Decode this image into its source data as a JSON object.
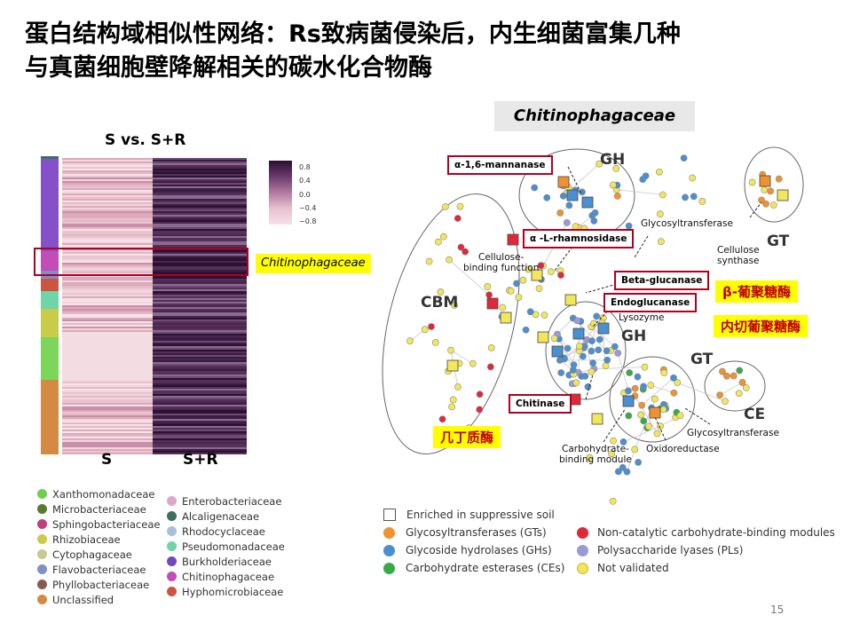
{
  "slide": {
    "title_line1": "蛋白结构域相似性网络：Rs致病菌侵染后，内生细菌富集几种",
    "title_line2": "与真菌细胞壁降解相关的碳水化合物酶",
    "page_number": "15"
  },
  "heatmap": {
    "title": "S vs. S+R",
    "xlabels": [
      "S",
      "S+R"
    ],
    "colorbar_ticks": [
      "0.8",
      "0.4",
      "0.0",
      "−0.4",
      "−0.8"
    ],
    "highlight_label": "Chitinophagaceae",
    "sidebar_colors": [
      "#8650c8",
      "#c44cb8",
      "#cc5540",
      "#6fd4a8",
      "#c8cc48",
      "#7cd65a",
      "#d48a42"
    ]
  },
  "legend": {
    "left": [
      {
        "label": "Xanthomonadaceae",
        "color": "#6fcf4e"
      },
      {
        "label": "Microbacteriaceae",
        "color": "#5a7a30"
      },
      {
        "label": "Sphingobacteriaceae",
        "color": "#c0407a"
      },
      {
        "label": "Rhizobiaceae",
        "color": "#c8cc48"
      },
      {
        "label": "Cytophagaceae",
        "color": "#c8c890"
      },
      {
        "label": "Flavobacteriaceae",
        "color": "#7f8fc8"
      },
      {
        "label": "Phyllobacteriaceae",
        "color": "#8a5a50"
      },
      {
        "label": "Unclassified",
        "color": "#d48a42"
      }
    ],
    "right": [
      {
        "label": "Enterobacteriaceae",
        "color": "#dca8c8"
      },
      {
        "label": "Alcaligenaceae",
        "color": "#3e6e60"
      },
      {
        "label": "Rhodocyclaceae",
        "color": "#a8c0dc"
      },
      {
        "label": "Pseudomonadaceae",
        "color": "#6fd4a8"
      },
      {
        "label": "Burkholderiaceae",
        "color": "#7048c0"
      },
      {
        "label": "Chitinophagaceae",
        "color": "#c44cb8"
      },
      {
        "label": "Hyphomicrobiaceae",
        "color": "#cc5540"
      }
    ]
  },
  "network": {
    "title": "Chitinophagaceae",
    "boxed_labels": {
      "mannanase": "α-1,6-mannanase",
      "rhamnosidase": "α -L-rhamnosidase",
      "beta_glucanase": "Beta-glucanase",
      "endoglucanase": "Endoglucanase",
      "chitinase": "Chitinase"
    },
    "labels": {
      "gh_top": "GH",
      "gt_top": "GT",
      "glycosyltransferase_top": "Glycosyltransferase",
      "cellulose_synthase": "Cellulose\nsynthase",
      "cellulose_binding": "Cellulose-\nbinding function",
      "cbm": "CBM",
      "lysozyme": "Lysozyme",
      "gh_mid": "GH",
      "gt_mid": "GT",
      "ce": "CE",
      "glycosyltransferase_bottom": "Glycosyltransferase",
      "oxidoreductase": "Oxidoreductase",
      "carb_binding_module": "Carbohydrate-\nbinding module"
    },
    "chinese_labels": {
      "beta_glucan": "β-葡聚糖酶",
      "endo_glucan": "内切葡聚糖酶",
      "chitinase_cn": "几丁质酶"
    }
  },
  "network_legend": {
    "enriched": "Enriched in suppressive soil",
    "items_left": [
      {
        "label": "Glycosyltransferases (GTs)",
        "color": "#f0922e"
      },
      {
        "label": "Glycoside hydrolases (GHs)",
        "color": "#4a8fd0"
      },
      {
        "label": "Carbohydrate esterases (CEs)",
        "color": "#3aaa48"
      }
    ],
    "items_right": [
      {
        "label": "Non-catalytic carbohydrate-binding modules",
        "color": "#e0283a"
      },
      {
        "label": "Polysaccharide lyases (PLs)",
        "color": "#9a9ad8"
      },
      {
        "label": "Not validated",
        "color": "#f2e65a"
      }
    ]
  }
}
